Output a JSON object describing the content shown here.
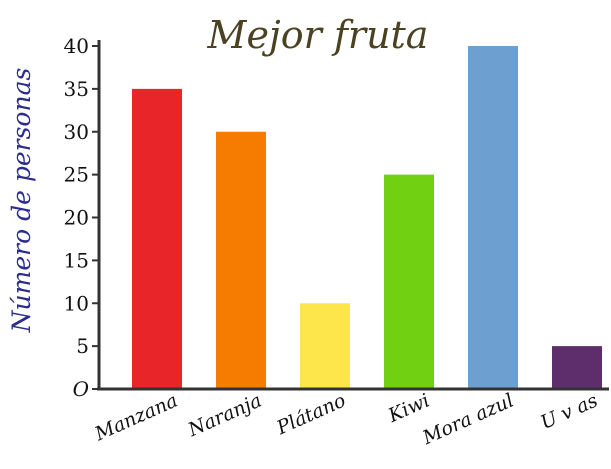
{
  "chart_data": {
    "type": "bar",
    "title": "Mejor fruta",
    "ylabel": "Número de personas",
    "xlabel": "",
    "categories": [
      "Manzana",
      "Naranja",
      "Plátano",
      "Kiwi",
      "Mora azul",
      "U v as"
    ],
    "values": [
      35,
      30,
      10,
      25,
      40,
      5
    ],
    "colors": [
      "#e8262a",
      "#f57c00",
      "#fde64b",
      "#71d012",
      "#6d9fd0",
      "#5e2d6c"
    ],
    "ylim": [
      0,
      40
    ],
    "yticks": [
      "O",
      "5",
      "10",
      "15",
      "20",
      "25",
      "30",
      "35",
      "40"
    ],
    "grid": false
  }
}
